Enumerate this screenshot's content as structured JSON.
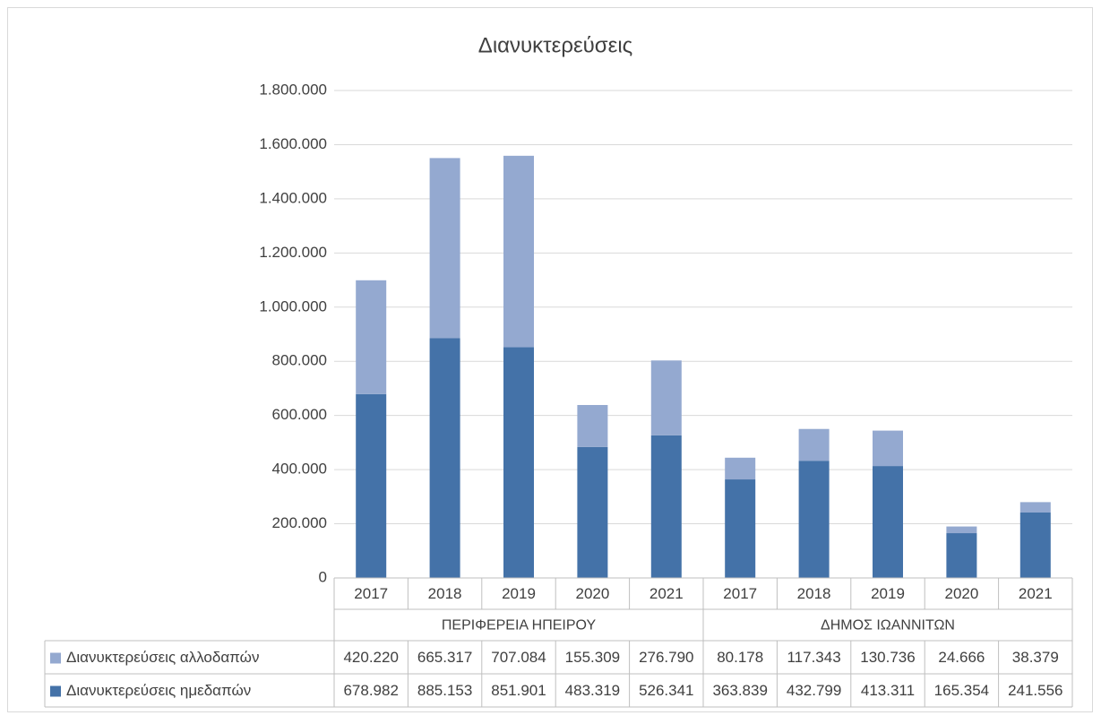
{
  "chart_data": {
    "type": "stacked_bar",
    "title": "Διανυκτερεύσεις",
    "groups": [
      {
        "name": "ΠΕΡΙΦΕΡΕΙΑ ΗΠΕΙΡΟΥ",
        "categories": [
          "2017",
          "2018",
          "2019",
          "2020",
          "2021"
        ]
      },
      {
        "name": "ΔΗΜΟΣ ΙΩΑΝΝΙΤΩΝ",
        "categories": [
          "2017",
          "2018",
          "2019",
          "2020",
          "2021"
        ]
      }
    ],
    "series": [
      {
        "name": "Διανυκτερεύσεις αλλοδαπών",
        "color": "#94a9d0",
        "values": [
          420220,
          665317,
          707084,
          155309,
          276790,
          80178,
          117343,
          130736,
          24666,
          38379
        ],
        "value_labels": [
          "420.220",
          "665.317",
          "707.084",
          "155.309",
          "276.790",
          "80.178",
          "117.343",
          "130.736",
          "24.666",
          "38.379"
        ]
      },
      {
        "name": "Διανυκτερεύσεις ημεδαπών",
        "color": "#4472a8",
        "values": [
          678982,
          885153,
          851901,
          483319,
          526341,
          363839,
          432799,
          413311,
          165354,
          241556
        ],
        "value_labels": [
          "678.982",
          "885.153",
          "851.901",
          "483.319",
          "526.341",
          "363.839",
          "432.799",
          "413.311",
          "165.354",
          "241.556"
        ]
      }
    ],
    "ylim": [
      0,
      1800000
    ],
    "yticks": [
      0,
      {
        "value": 200000,
        "label": "200.000"
      },
      {
        "value": 400000,
        "label": "400.000"
      },
      {
        "value": 600000,
        "label": "600.000"
      },
      {
        "value": 800000,
        "label": "800.000"
      },
      {
        "value": 1000000,
        "label": "1.000.000"
      },
      {
        "value": 1200000,
        "label": "1.200.000"
      },
      {
        "value": 1400000,
        "label": "1.400.000"
      },
      {
        "value": 1600000,
        "label": "1.600.000"
      },
      {
        "value": 1800000,
        "label": "1.800.000"
      }
    ],
    "grid": true
  }
}
